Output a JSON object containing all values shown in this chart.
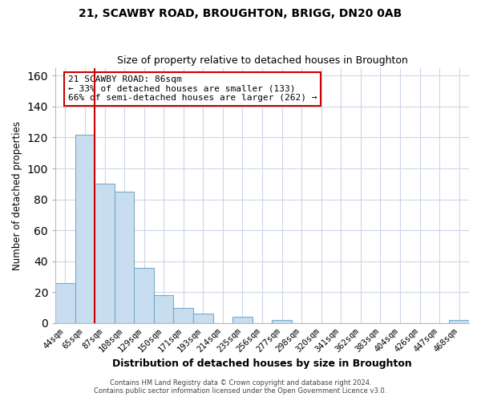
{
  "title": "21, SCAWBY ROAD, BROUGHTON, BRIGG, DN20 0AB",
  "subtitle": "Size of property relative to detached houses in Broughton",
  "xlabel": "Distribution of detached houses by size in Broughton",
  "ylabel": "Number of detached properties",
  "bar_labels": [
    "44sqm",
    "65sqm",
    "87sqm",
    "108sqm",
    "129sqm",
    "150sqm",
    "171sqm",
    "193sqm",
    "214sqm",
    "235sqm",
    "256sqm",
    "277sqm",
    "298sqm",
    "320sqm",
    "341sqm",
    "362sqm",
    "383sqm",
    "404sqm",
    "426sqm",
    "447sqm",
    "468sqm"
  ],
  "bar_values": [
    26,
    122,
    90,
    85,
    36,
    18,
    10,
    6,
    0,
    4,
    0,
    2,
    0,
    0,
    0,
    0,
    0,
    0,
    0,
    0,
    2
  ],
  "bar_color": "#c8ddf0",
  "bar_edge_color": "#7aaac8",
  "vline_index": 1.5,
  "vline_color": "#cc0000",
  "ylim": [
    0,
    165
  ],
  "yticks": [
    0,
    20,
    40,
    60,
    80,
    100,
    120,
    140,
    160
  ],
  "annotation_title": "21 SCAWBY ROAD: 86sqm",
  "annotation_line1": "← 33% of detached houses are smaller (133)",
  "annotation_line2": "66% of semi-detached houses are larger (262) →",
  "annotation_box_color": "#ffffff",
  "annotation_box_edge": "#cc0000",
  "footer1": "Contains HM Land Registry data © Crown copyright and database right 2024.",
  "footer2": "Contains public sector information licensed under the Open Government Licence v3.0.",
  "background_color": "#ffffff",
  "grid_color": "#ccd6e8"
}
